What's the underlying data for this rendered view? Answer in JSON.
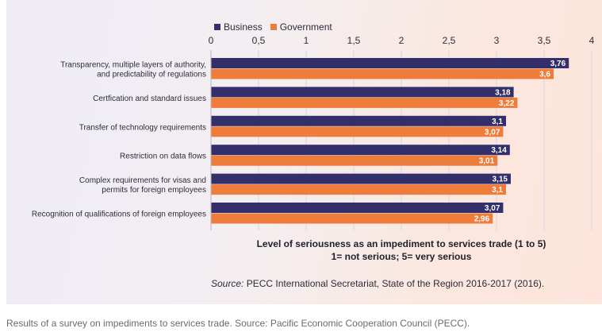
{
  "chart_data": {
    "type": "bar",
    "orientation": "horizontal",
    "categories": [
      "Transparency, multiple layers of authority,\nand predictability of regulations",
      "Certfication and standard issues",
      "Transfer of technology requirements",
      "Restriction on data flows",
      "Complex requirements for visas and\npermits for foreign employees",
      "Recognition of qualifications of foreign employees"
    ],
    "series": [
      {
        "name": "Business",
        "color": "#332f6b",
        "values": [
          3.76,
          3.18,
          3.1,
          3.14,
          3.15,
          3.07
        ],
        "labels": [
          "3,76",
          "3,18",
          "3,1",
          "3,14",
          "3,15",
          "3,07"
        ]
      },
      {
        "name": "Government",
        "color": "#ee7d3b",
        "values": [
          3.6,
          3.22,
          3.07,
          3.01,
          3.1,
          2.96
        ],
        "labels": [
          "3,6",
          "3,22",
          "3,07",
          "3,01",
          "3,1",
          "2,96"
        ]
      }
    ],
    "xlim": [
      0,
      4
    ],
    "ticks": [
      0,
      0.5,
      1,
      1.5,
      2,
      2.5,
      3,
      3.5,
      4
    ],
    "tick_labels": [
      "0",
      "0,5",
      "1",
      "1,5",
      "2",
      "2,5",
      "3",
      "3,5",
      "4"
    ],
    "grid": true,
    "legend_position": "top-left",
    "xlabel_line1": "Level of seriousness as an impediment to services trade (1 to 5)",
    "xlabel_line2": "1= not serious; 5= very serious"
  },
  "source_prefix": "Source:",
  "source_text": " PECC International Secretariat, State of the Region 2016-2017 (2016).",
  "caption": "Results of a survey on impediments to services trade. Source: Pacific Economic Cooperation Council (PECC)."
}
